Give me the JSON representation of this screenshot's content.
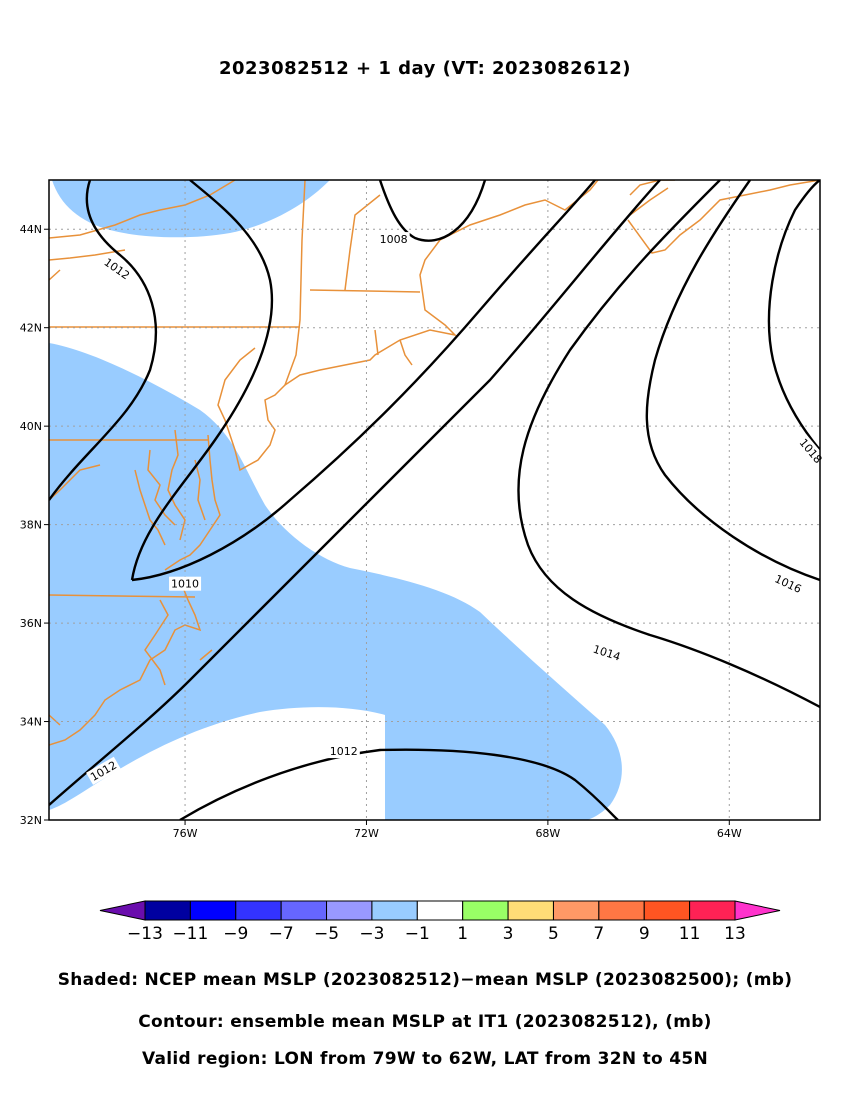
{
  "title": "2023082512 + 1 day (VT: 2023082612)",
  "map": {
    "region": {
      "lon_min": -79,
      "lon_max": -62,
      "lat_min": 32,
      "lat_max": 45
    },
    "lon_ticks": [
      {
        "value": -76,
        "label": "76W"
      },
      {
        "value": -72,
        "label": "72W"
      },
      {
        "value": -68,
        "label": "68W"
      },
      {
        "value": -64,
        "label": "64W"
      }
    ],
    "lat_ticks": [
      {
        "value": 32,
        "label": "32N"
      },
      {
        "value": 34,
        "label": "34N"
      },
      {
        "value": 36,
        "label": "36N"
      },
      {
        "value": 38,
        "label": "38N"
      },
      {
        "value": 40,
        "label": "40N"
      },
      {
        "value": 42,
        "label": "42N"
      },
      {
        "value": 44,
        "label": "44N"
      }
    ],
    "gridlines": true,
    "coastline_color": "#e8913a",
    "shading_color": "#99ccff",
    "contour_labels": [
      {
        "text": "1008",
        "lon": -71.4,
        "lat": 43.8
      },
      {
        "text": "1010",
        "lon": -76.0,
        "lat": 36.8
      },
      {
        "text": "1012",
        "lon": -77.5,
        "lat": 43.2,
        "angle": 35
      },
      {
        "text": "1012",
        "lon": -72.5,
        "lat": 33.4
      },
      {
        "text": "1012",
        "lon": -77.8,
        "lat": 33.0,
        "angle": -30
      },
      {
        "text": "1014",
        "lon": -66.7,
        "lat": 35.4,
        "angle": 18
      },
      {
        "text": "1016",
        "lon": -62.7,
        "lat": 36.8,
        "angle": 25
      },
      {
        "text": "1018",
        "lon": -62.2,
        "lat": 39.5,
        "angle": 50
      }
    ]
  },
  "colorbar": {
    "colors": [
      "#6a0dad",
      "#0000a0",
      "#0000ff",
      "#3333ff",
      "#6666ff",
      "#9999ff",
      "#99ccff",
      "#ffffff",
      "#99ff66",
      "#ffdd77",
      "#ff9966",
      "#ff7744",
      "#ff5522",
      "#ff2255",
      "#ff33cc"
    ],
    "labels": [
      "−13",
      "−11",
      "−9",
      "−7",
      "−5",
      "−3",
      "−1",
      "1",
      "3",
      "5",
      "7",
      "9",
      "11",
      "13"
    ]
  },
  "captions": {
    "shaded": "Shaded: NCEP mean MSLP (2023082512)−mean MSLP (2023082500); (mb)",
    "contour": "Contour: ensemble mean MSLP at IT1 (2023082512), (mb)",
    "region": "Valid region: LON from 79W to 62W, LAT from 32N to 45N"
  }
}
